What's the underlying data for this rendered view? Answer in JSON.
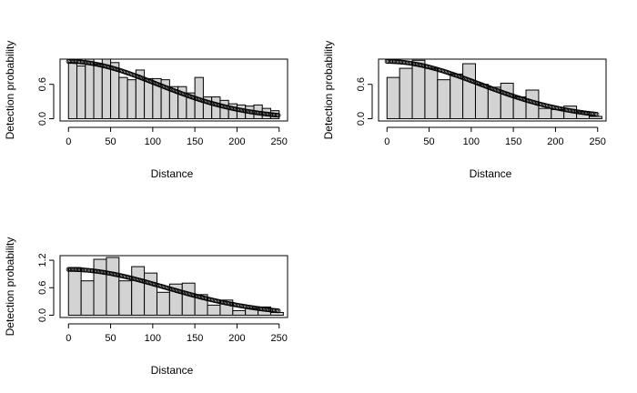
{
  "figure": {
    "panels": 3
  },
  "colors": {
    "bar_fill": "#d3d3d3",
    "bar_stroke": "#000000",
    "curve": "#000000",
    "background": "#ffffff"
  },
  "chart_data": [
    {
      "type": "bar",
      "title": "",
      "xlabel": "Distance",
      "ylabel": "Detection probability",
      "xlim": [
        0,
        250
      ],
      "ylim": [
        0,
        1.0
      ],
      "x_ticks": [
        0,
        50,
        100,
        150,
        200,
        250
      ],
      "y_ticks": [
        0.0,
        0.6
      ],
      "bin_width": 10,
      "bin_starts": [
        0,
        10,
        20,
        30,
        40,
        50,
        60,
        70,
        80,
        90,
        100,
        110,
        120,
        130,
        140,
        150,
        160,
        170,
        180,
        190,
        200,
        210,
        220,
        230,
        240
      ],
      "values": [
        0.98,
        0.92,
        1.05,
        0.95,
        1.05,
        0.98,
        0.72,
        0.68,
        0.85,
        0.7,
        0.7,
        0.68,
        0.56,
        0.56,
        0.45,
        0.72,
        0.38,
        0.38,
        0.32,
        0.26,
        0.24,
        0.22,
        0.24,
        0.18,
        0.14
      ],
      "curve": {
        "type": "half-normal",
        "sigma": 105,
        "start": 1.0,
        "end": 250,
        "marker": "open-circle"
      },
      "grid": false,
      "legend": "none"
    },
    {
      "type": "bar",
      "title": "",
      "xlabel": "Distance",
      "ylabel": "Detection probability",
      "xlim": [
        0,
        250
      ],
      "ylim": [
        0,
        1.0
      ],
      "x_ticks": [
        0,
        50,
        100,
        150,
        200,
        250
      ],
      "y_ticks": [
        0.0,
        0.6
      ],
      "bin_width": 15,
      "bin_starts": [
        0,
        15,
        30,
        45,
        60,
        75,
        90,
        105,
        120,
        135,
        150,
        165,
        180,
        195,
        210,
        225,
        240
      ],
      "values": [
        0.72,
        0.88,
        1.02,
        0.88,
        0.68,
        0.78,
        0.96,
        0.6,
        0.55,
        0.62,
        0.38,
        0.5,
        0.18,
        0.16,
        0.22,
        0.12,
        0.04
      ],
      "curve": {
        "type": "half-normal",
        "sigma": 110,
        "start": 1.0,
        "end": 250,
        "marker": "open-circle"
      },
      "grid": false,
      "legend": "none"
    },
    {
      "type": "bar",
      "title": "",
      "xlabel": "Distance",
      "ylabel": "Detection probability",
      "xlim": [
        0,
        250
      ],
      "ylim": [
        0,
        1.25
      ],
      "x_ticks": [
        0,
        50,
        100,
        150,
        200,
        250
      ],
      "y_ticks": [
        0.0,
        0.6,
        1.2
      ],
      "y_tick_labels": [
        "0.0",
        "0.6",
        "1.2"
      ],
      "bin_width": 15,
      "bin_starts": [
        0,
        15,
        30,
        45,
        60,
        75,
        90,
        105,
        120,
        135,
        150,
        165,
        180,
        195,
        210,
        225,
        240
      ],
      "values": [
        1.04,
        0.75,
        1.22,
        1.26,
        0.75,
        1.06,
        0.92,
        0.5,
        0.68,
        0.7,
        0.45,
        0.22,
        0.33,
        0.1,
        0.15,
        0.18,
        0.06
      ],
      "curve": {
        "type": "half-normal",
        "sigma": 115,
        "start": 1.0,
        "end": 250,
        "marker": "open-circle"
      },
      "grid": false,
      "legend": "none"
    }
  ]
}
